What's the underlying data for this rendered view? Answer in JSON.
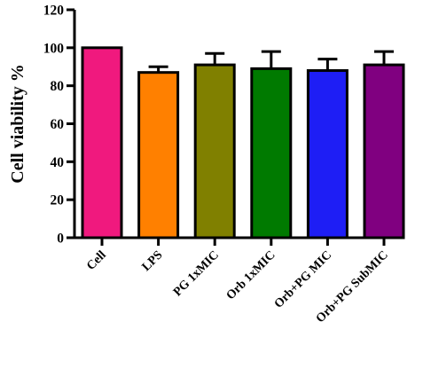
{
  "chart_data": {
    "type": "bar",
    "title": "",
    "xlabel": "",
    "ylabel": "Cell viability %",
    "ylim": [
      0,
      120
    ],
    "yticks": [
      0,
      20,
      40,
      60,
      80,
      100,
      120
    ],
    "grid": false,
    "categories": [
      "Cell",
      "LPS",
      "PG 1xMIC",
      "Orb 1xMIC",
      "Orb+PG MIC",
      "Orb+PG SubMIC"
    ],
    "values": [
      100,
      87,
      91,
      89,
      88,
      91
    ],
    "errors": [
      0,
      3,
      6,
      9,
      6,
      7
    ],
    "colors": [
      "#f0197e",
      "#ff8000",
      "#808000",
      "#007a00",
      "#1e1ef5",
      "#800080"
    ]
  }
}
